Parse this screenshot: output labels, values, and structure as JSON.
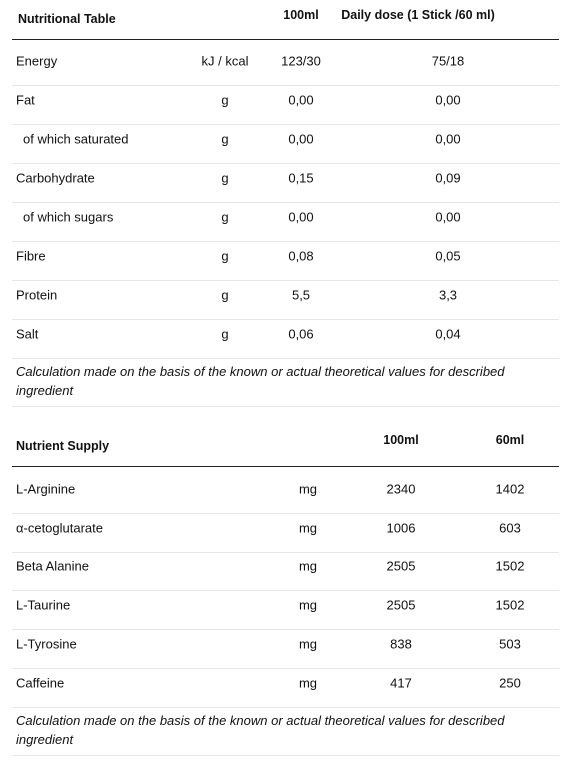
{
  "tables": [
    {
      "header": [
        "Nutritional Table",
        "100ml",
        "Daily dose (1 Stick /60 ml)"
      ],
      "rows": [
        {
          "cells": [
            "Energy",
            "kJ / kcal",
            "123/30",
            "75/18"
          ]
        },
        {
          "cells": [
            "Fat",
            "g",
            "0,00",
            "0,00"
          ],
          "sub": [
            {
              "cells": [
                "of which saturated",
                "g",
                "0,00",
                "0,00"
              ]
            }
          ]
        },
        {
          "cells": [
            "Carbohydrate",
            "g",
            "0,15",
            "0,09"
          ],
          "sub": [
            {
              "cells": [
                "of which sugars",
                "g",
                "0,00",
                "0,00"
              ]
            }
          ]
        },
        {
          "cells": [
            "Fibre",
            "g",
            "0,08",
            "0,05"
          ]
        },
        {
          "cells": [
            "Protein",
            "g",
            "5,5",
            "3,3"
          ]
        },
        {
          "cells": [
            "Salt",
            "g",
            "0,06",
            "0,04"
          ]
        }
      ],
      "note": "Calculation made on the basis of the known or actual theoretical values for described ingredient"
    },
    {
      "header": [
        "Nutrient Supply",
        "100ml",
        "60ml"
      ],
      "rows": [
        {
          "cells": [
            "L-Arginine",
            "mg",
            "2340",
            "1402"
          ]
        },
        {
          "cells": [
            "α-cetoglutarate",
            "mg",
            "1006",
            "603"
          ]
        },
        {
          "cells": [
            "Beta Alanine",
            "mg",
            "2505",
            "1502"
          ]
        },
        {
          "cells": [
            "L-Taurine",
            "mg",
            "2505",
            "1502"
          ]
        },
        {
          "cells": [
            "L-Tyrosine",
            "mg",
            "838",
            "503"
          ]
        },
        {
          "cells": [
            "Caffeine",
            "mg",
            "417",
            "250"
          ]
        }
      ],
      "note": "Calculation made on the basis of the known or actual theoretical values for described ingredient"
    }
  ]
}
